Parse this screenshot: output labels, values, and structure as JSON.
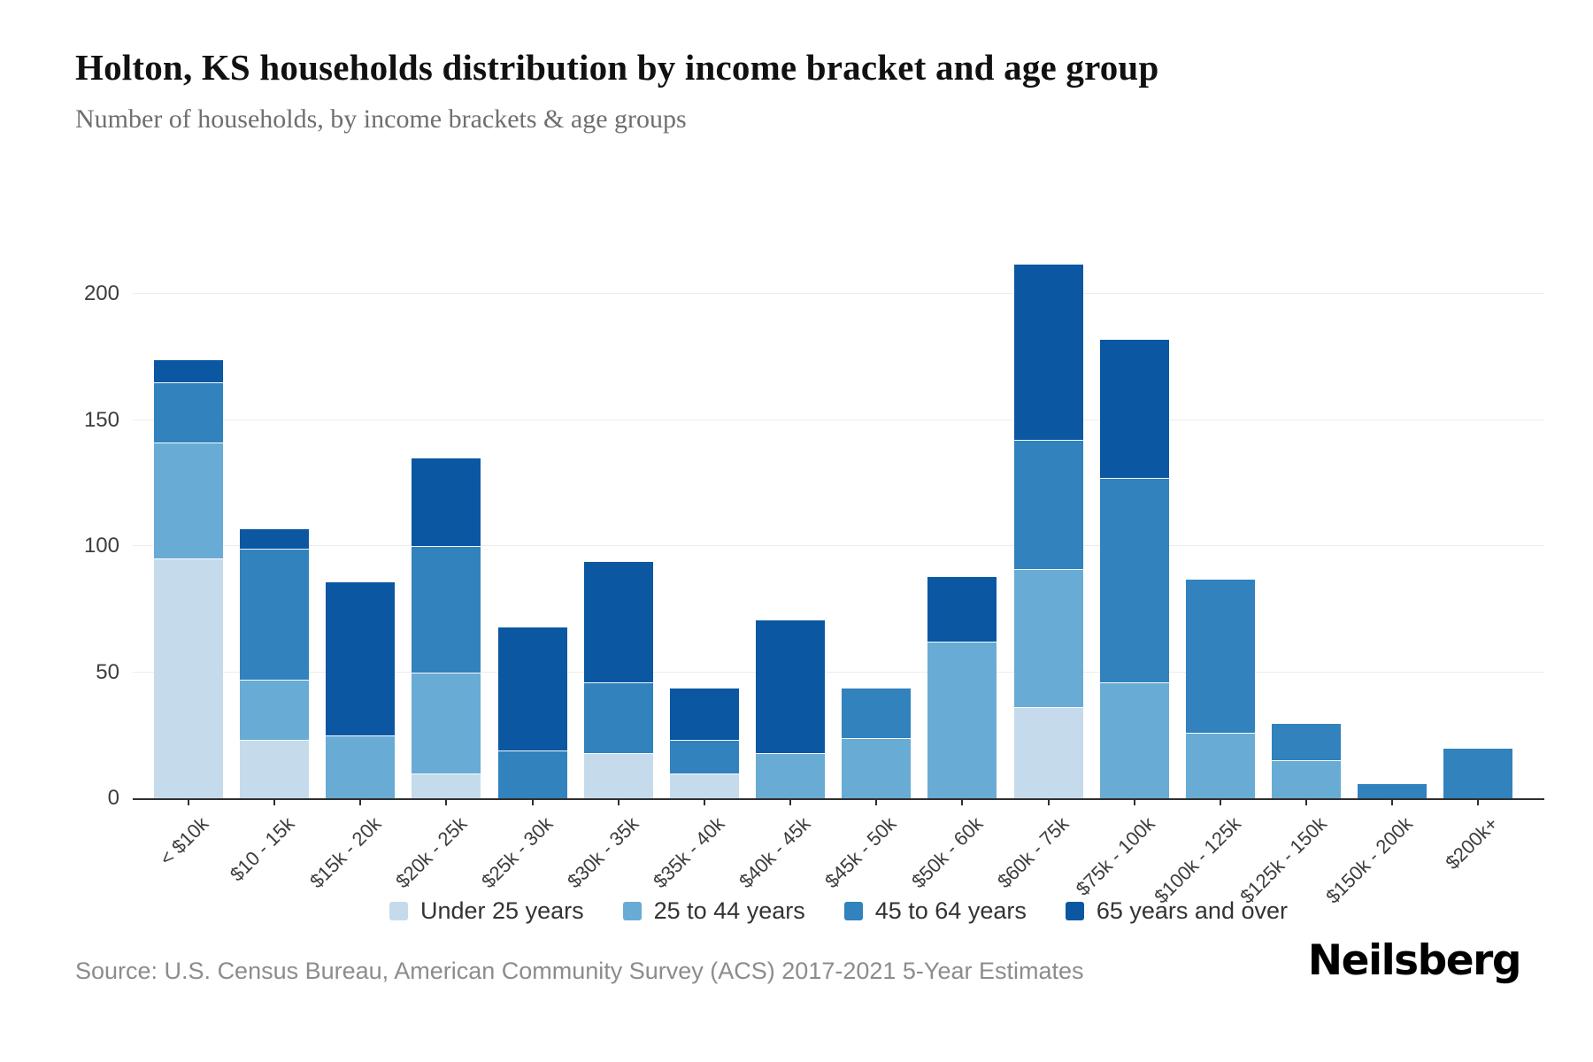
{
  "header": {
    "title": "Holton, KS households distribution by income bracket and age group",
    "subtitle": "Number of households, by income brackets & age groups"
  },
  "chart_data": {
    "type": "bar",
    "stacked": true,
    "title": "Holton, KS households distribution by income bracket and age group",
    "subtitle": "Number of households, by income brackets & age groups",
    "xlabel": "",
    "ylabel": "",
    "ylim": [
      0,
      220
    ],
    "yticks": [
      0,
      50,
      100,
      150,
      200
    ],
    "grid": "horizontal",
    "legend_position": "bottom",
    "categories": [
      "< $10k",
      "$10 - 15k",
      "$15k - 20k",
      "$20k - 25k",
      "$25k - 30k",
      "$30k - 35k",
      "$35k - 40k",
      "$40k - 45k",
      "$45k - 50k",
      "$50k - 60k",
      "$60k - 75k",
      "$75k - 100k",
      "$100k - 125k",
      "$125k - 150k",
      "$150k - 200k",
      "$200k+"
    ],
    "series": [
      {
        "name": "Under 25 years",
        "color": "#c5dbec",
        "values": [
          95,
          23,
          0,
          10,
          0,
          18,
          10,
          0,
          0,
          0,
          36,
          0,
          0,
          0,
          0,
          0
        ]
      },
      {
        "name": "25 to 44 years",
        "color": "#68abd5",
        "values": [
          46,
          24,
          25,
          40,
          0,
          0,
          0,
          18,
          24,
          62,
          55,
          46,
          26,
          15,
          0,
          0
        ]
      },
      {
        "name": "45 to 64 years",
        "color": "#3182bd",
        "values": [
          24,
          52,
          0,
          50,
          19,
          28,
          13,
          0,
          20,
          0,
          51,
          81,
          61,
          15,
          6,
          20
        ]
      },
      {
        "name": "65 years and over",
        "color": "#0b57a2",
        "values": [
          9,
          8,
          61,
          35,
          49,
          48,
          21,
          53,
          0,
          26,
          70,
          55,
          0,
          0,
          0,
          0
        ]
      }
    ],
    "bar_totals": [
      174,
      107,
      86,
      135,
      68,
      94,
      44,
      71,
      44,
      88,
      212,
      182,
      87,
      30,
      6,
      20
    ],
    "axis_text_color": "#3d3d3d",
    "gridline_color": "#ececec"
  },
  "footer": {
    "source": "Source: U.S. Census Bureau, American Community Survey (ACS) 2017-2021 5-Year Estimates",
    "logo": "Neilsberg"
  }
}
